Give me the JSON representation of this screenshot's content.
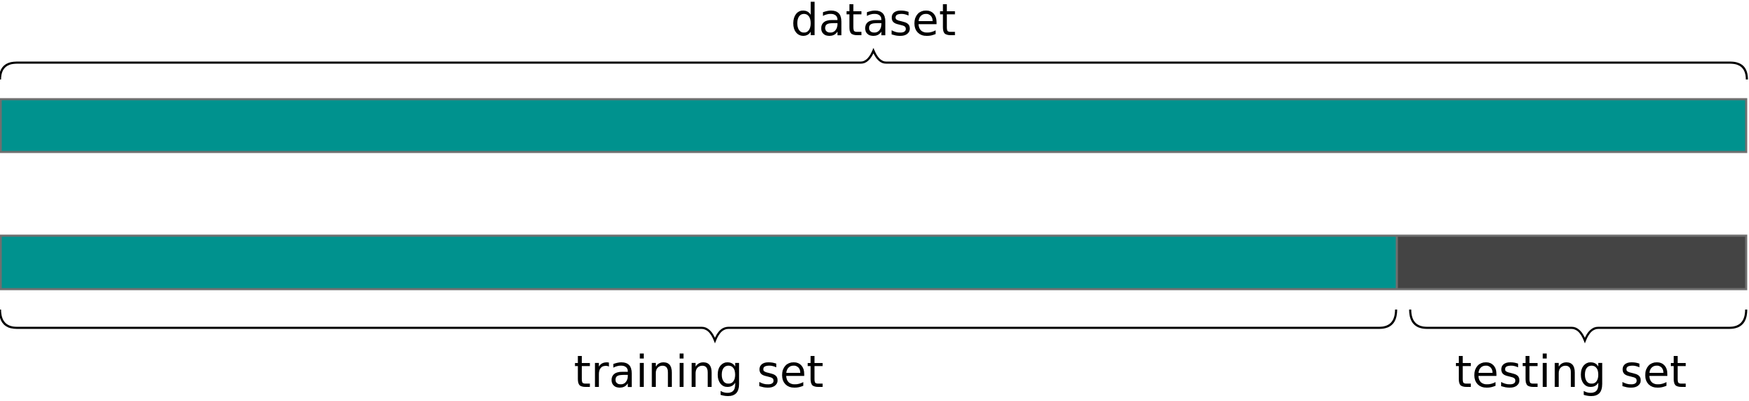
{
  "labels": {
    "top": "dataset",
    "left_bottom": "training set",
    "right_bottom": "testing set"
  },
  "split": {
    "training_fraction": 0.8,
    "testing_fraction": 0.2
  },
  "colors": {
    "dataset_bar": "#00928e",
    "training_bar": "#00928e",
    "testing_bar": "#444444",
    "bar_border": "#6f6f6f",
    "brace": "#000000",
    "text": "#000000",
    "background": "#ffffff"
  }
}
